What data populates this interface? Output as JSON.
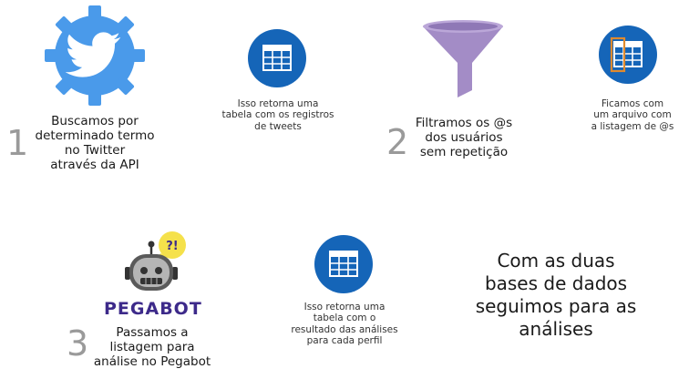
{
  "colors": {
    "twitter_blue": "#4A9AEA",
    "table_blue": "#1565B8",
    "funnel_purple": "#A38CC6",
    "step_number_gray": "#9A9A9A",
    "pegabot_purple": "#3D2A8A",
    "highlight_orange": "#E08A2E"
  },
  "steps": [
    {
      "number": "1",
      "text": "Buscamos por\ndeterminado termo\nno Twitter\natravés da API",
      "icon": "twitter-gear-icon"
    },
    {
      "number": "2",
      "text": "Filtramos os @s\ndos usuários\nsem repetição",
      "icon": "funnel-icon"
    },
    {
      "number": "3",
      "text": "Passamos a\nlistagem para\nanálise no Pegabot",
      "icon": "pegabot-robot-icon"
    }
  ],
  "notes": [
    {
      "text": "Isso retorna uma\ntabela com os registros\nde tweets",
      "icon": "table-icon"
    },
    {
      "text": "Ficamos com\num arquivo com\na listagem de @s",
      "icon": "table-column-icon"
    },
    {
      "text": "Isso retorna uma\ntabela com o\nresultado das análises\npara cada perfil",
      "icon": "table-icon"
    }
  ],
  "pegabot": {
    "brand": "PEGABOT",
    "bubble": "?!"
  },
  "conclusion": "Com as duas\nbases de dados\nseguimos para as\nanálises"
}
